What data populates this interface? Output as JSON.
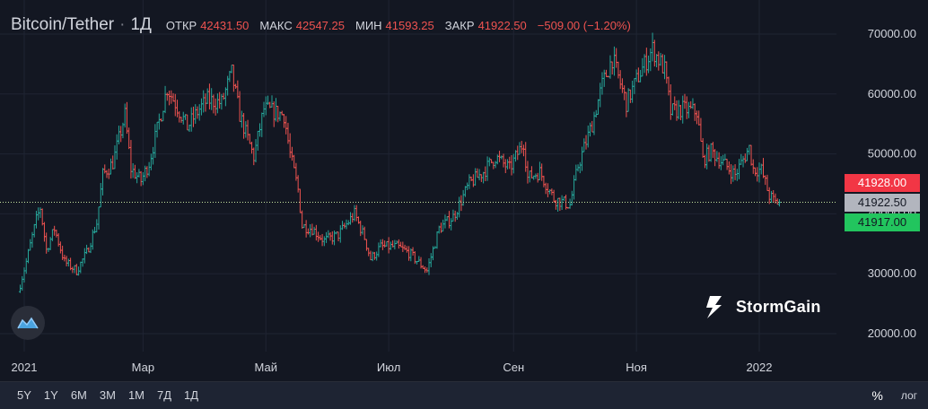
{
  "legend": {
    "symbol": "Bitcoin/Tether",
    "separator": "·",
    "interval": "1Д",
    "open_label": "ОТКР",
    "open": "42431.50",
    "high_label": "МАКС",
    "high": "42547.25",
    "low_label": "МИН",
    "low": "41593.25",
    "close_label": "ЗАКР",
    "close": "41922.50",
    "change": "−509.00 (−1.20%)"
  },
  "price_tags": {
    "ask": "41928.00",
    "last": "41922.50",
    "bid": "41917.00"
  },
  "logo": {
    "name": "StormGain"
  },
  "toolbar": {
    "timeframes": [
      "5Y",
      "1Y",
      "6M",
      "3M",
      "1M",
      "7Д",
      "1Д"
    ],
    "percent_label": "%",
    "log_label": "лог"
  },
  "colors": {
    "background": "#131722",
    "up": "#26a69a",
    "down": "#ef5350",
    "bullish": "#4caf50",
    "grid": "#1f2433",
    "ask_tag": "#f23645",
    "last_tag": "#b2b5be",
    "bid_tag": "#22c55e",
    "last_line": "#c8e6a0"
  },
  "chart_data": {
    "type": "ohlc",
    "title": "Bitcoin/Tether",
    "interval": "1Д",
    "y_axis": {
      "ticks": [
        20000,
        30000,
        40000,
        50000,
        60000,
        70000
      ],
      "tick_labels": [
        "20000.00",
        "30000.00",
        "40000.00",
        "50000.00",
        "60000.00",
        "70000.00"
      ],
      "range": [
        17500,
        74500
      ],
      "scale": "linear"
    },
    "x_axis": {
      "labels": [
        "2021",
        "Мар",
        "Май",
        "Июл",
        "Сен",
        "Ноя",
        "2022"
      ],
      "label_dates": [
        "2021-01-01",
        "2021-03-01",
        "2021-05-01",
        "2021-07-01",
        "2021-09-01",
        "2021-11-01",
        "2022-01-01"
      ]
    },
    "grid": true,
    "last_price": 41922.5,
    "ask": 41928.0,
    "bid": 41917.0,
    "series_start_date": "2020-12-29",
    "close_path": [
      [
        "2020-12-29",
        27000
      ],
      [
        "2021-01-02",
        32000
      ],
      [
        "2021-01-07",
        39000
      ],
      [
        "2021-01-09",
        41000
      ],
      [
        "2021-01-12",
        34000
      ],
      [
        "2021-01-16",
        37500
      ],
      [
        "2021-01-21",
        32000
      ],
      [
        "2021-01-27",
        30500
      ],
      [
        "2021-02-01",
        33500
      ],
      [
        "2021-02-06",
        38500
      ],
      [
        "2021-02-09",
        46500
      ],
      [
        "2021-02-14",
        48500
      ],
      [
        "2021-02-20",
        56500
      ],
      [
        "2021-02-23",
        47500
      ],
      [
        "2021-02-28",
        45500
      ],
      [
        "2021-03-04",
        48500
      ],
      [
        "2021-03-13",
        61000
      ],
      [
        "2021-03-17",
        58500
      ],
      [
        "2021-03-23",
        54500
      ],
      [
        "2021-03-29",
        57500
      ],
      [
        "2021-04-02",
        59000
      ],
      [
        "2021-04-09",
        58500
      ],
      [
        "2021-04-14",
        63500
      ],
      [
        "2021-04-18",
        56500
      ],
      [
        "2021-04-25",
        49500
      ],
      [
        "2021-04-30",
        57500
      ],
      [
        "2021-05-05",
        57000
      ],
      [
        "2021-05-10",
        56500
      ],
      [
        "2021-05-13",
        50000
      ],
      [
        "2021-05-17",
        44000
      ],
      [
        "2021-05-19",
        38000
      ],
      [
        "2021-05-24",
        37500
      ],
      [
        "2021-05-30",
        35500
      ],
      [
        "2021-06-06",
        36500
      ],
      [
        "2021-06-14",
        40000
      ],
      [
        "2021-06-19",
        36000
      ],
      [
        "2021-06-22",
        32500
      ],
      [
        "2021-06-27",
        34500
      ],
      [
        "2021-07-05",
        34500
      ],
      [
        "2021-07-11",
        33500
      ],
      [
        "2021-07-20",
        30500
      ],
      [
        "2021-07-26",
        37500
      ],
      [
        "2021-08-02",
        39500
      ],
      [
        "2021-08-10",
        45000
      ],
      [
        "2021-08-17",
        47000
      ],
      [
        "2021-08-23",
        49500
      ],
      [
        "2021-08-30",
        47500
      ],
      [
        "2021-09-06",
        52000
      ],
      [
        "2021-09-08",
        46000
      ],
      [
        "2021-09-14",
        47000
      ],
      [
        "2021-09-21",
        42500
      ],
      [
        "2021-09-29",
        41500
      ],
      [
        "2021-10-03",
        48000
      ],
      [
        "2021-10-10",
        55000
      ],
      [
        "2021-10-15",
        61500
      ],
      [
        "2021-10-20",
        66000
      ],
      [
        "2021-10-27",
        58500
      ],
      [
        "2021-11-02",
        63000
      ],
      [
        "2021-11-09",
        67500
      ],
      [
        "2021-11-15",
        64000
      ],
      [
        "2021-11-18",
        57000
      ],
      [
        "2021-11-24",
        57500
      ],
      [
        "2021-12-01",
        57000
      ],
      [
        "2021-12-04",
        49000
      ],
      [
        "2021-12-08",
        50500
      ],
      [
        "2021-12-14",
        48500
      ],
      [
        "2021-12-20",
        46500
      ],
      [
        "2021-12-27",
        51000
      ],
      [
        "2021-12-29",
        47500
      ],
      [
        "2022-01-02",
        47300
      ],
      [
        "2022-01-06",
        43000
      ],
      [
        "2022-01-09",
        41900
      ],
      [
        "2022-01-11",
        41922.5
      ]
    ]
  }
}
